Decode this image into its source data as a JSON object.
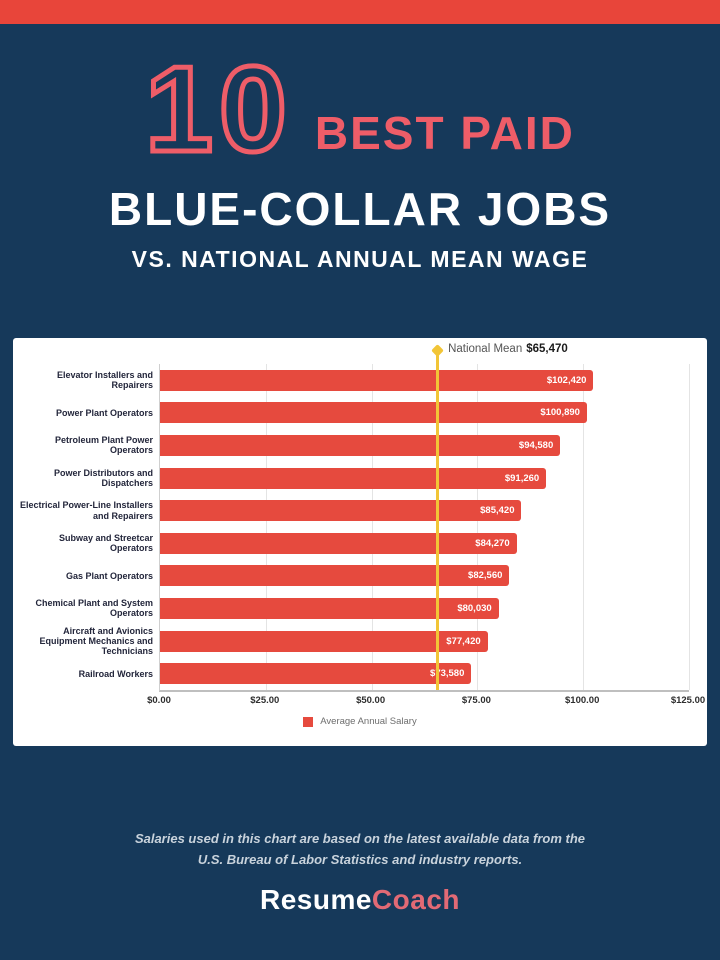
{
  "page": {
    "background_color": "#16395A",
    "top_bar_color": "#E8453A",
    "accent_color": "#EE5D68"
  },
  "header": {
    "big_number": "10",
    "title_line1": "BEST PAID",
    "title_line2": "BLUE-COLLAR JOBS",
    "subtitle": "VS. NATIONAL ANNUAL MEAN WAGE"
  },
  "chart_data": {
    "type": "bar",
    "orientation": "horizontal",
    "categories": [
      "Elevator Installers and Repairers",
      "Power Plant Operators",
      "Petroleum Plant Power Operators",
      "Power Distributors and Dispatchers",
      "Electrical Power-Line Installers and Repairers",
      "Subway and Streetcar Operators",
      "Gas Plant Operators",
      "Chemical Plant and System Operators",
      "Aircraft and Avionics Equipment Mechanics and Technicians",
      "Railroad Workers"
    ],
    "values": [
      102420,
      100890,
      94580,
      91260,
      85420,
      84270,
      82560,
      80030,
      77420,
      73580
    ],
    "value_labels": [
      "$102,420",
      "$100,890",
      "$94,580",
      "$91,260",
      "$85,420",
      "$84,270",
      "$82,560",
      "$80,030",
      "$77,420",
      "$73,580"
    ],
    "x_ticks": [
      "$0.00",
      "$25.00",
      "$50.00",
      "$75.00",
      "$100.00",
      "$125.00"
    ],
    "xlim": [
      0,
      125000
    ],
    "grid": true,
    "bar_color": "#E64A3E",
    "legend_position": "bottom",
    "legend_label": "Average Annual Salary",
    "reference_line": {
      "label": "National Mean",
      "value": 65470,
      "value_label": "$65,470",
      "color": "#F2C537"
    }
  },
  "footer": {
    "note_line1": "Salaries used in this chart are based on the latest available data from the",
    "note_line2": "U.S. Bureau of Labor Statistics and industry reports.",
    "logo_part1": "Resume",
    "logo_part2": "Coach"
  }
}
